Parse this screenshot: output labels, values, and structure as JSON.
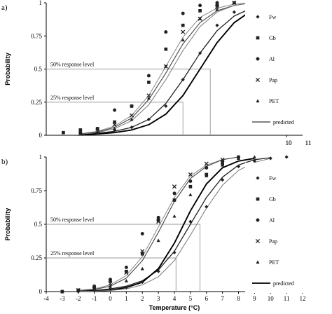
{
  "chart_data": [
    {
      "panel_label": "a)",
      "type": "line",
      "title": "",
      "xlabel": "",
      "ylabel": "Probability",
      "xlim": [
        -4,
        11
      ],
      "ylim": [
        0,
        1
      ],
      "x_tick_labels": [
        "10",
        "11"
      ],
      "y_ticks": [
        0,
        0.25,
        0.5,
        0.75,
        1
      ],
      "y_tick_labels": [
        "0",
        "0.25",
        "0.5",
        "0.75",
        "1"
      ],
      "legend_position": "right",
      "series": [
        {
          "name": "Fw",
          "marker": "diamond",
          "x": [
            -2,
            -1,
            0,
            1,
            2,
            3,
            4,
            5,
            6,
            7,
            8
          ],
          "y": [
            0.01,
            0.02,
            0.04,
            0.06,
            0.12,
            0.22,
            0.42,
            0.62,
            0.83,
            0.93,
            0.97
          ]
        },
        {
          "name": "Gb",
          "marker": "square",
          "x": [
            -3,
            -2,
            -1,
            0,
            1,
            2,
            3,
            4,
            5,
            6,
            7
          ],
          "y": [
            0.02,
            0.04,
            0.05,
            0.1,
            0.22,
            0.4,
            0.65,
            0.83,
            0.94,
            0.98,
            1
          ]
        },
        {
          "name": "Al",
          "marker": "circle",
          "x": [
            -2,
            -1,
            0,
            1,
            2,
            3,
            4,
            5,
            6
          ],
          "y": [
            0.02,
            0.05,
            0.19,
            0.22,
            0.45,
            0.78,
            0.92,
            0.98,
            1
          ]
        },
        {
          "name": "Pap",
          "marker": "x",
          "x": [
            -2,
            -1,
            0,
            1,
            2,
            3,
            4,
            5,
            6,
            7
          ],
          "y": [
            0.01,
            0.03,
            0.08,
            0.15,
            0.3,
            0.52,
            0.78,
            0.88,
            0.97,
            1
          ]
        },
        {
          "name": "PET",
          "marker": "triangle",
          "x": [
            -2,
            -1,
            0,
            1,
            2,
            3,
            4,
            5,
            6,
            7
          ],
          "y": [
            0.01,
            0.02,
            0.05,
            0.12,
            0.28,
            0.52,
            0.72,
            0.88,
            0.95,
            1
          ]
        },
        {
          "name": "predicted",
          "marker": "line"
        }
      ],
      "predicted_curves": [
        {
          "x": [
            -2,
            -1,
            0,
            1,
            2,
            3,
            4,
            5,
            6,
            7,
            8,
            9
          ],
          "y": [
            0.005,
            0.015,
            0.03,
            0.06,
            0.12,
            0.24,
            0.42,
            0.62,
            0.79,
            0.9,
            0.96,
            0.99
          ]
        },
        {
          "x": [
            -2,
            -1,
            0,
            1,
            2,
            3,
            4,
            5,
            6,
            7,
            8,
            9
          ],
          "y": [
            0.003,
            0.01,
            0.02,
            0.04,
            0.08,
            0.16,
            0.3,
            0.5,
            0.7,
            0.85,
            0.94,
            0.98
          ]
        },
        {
          "x": [
            -2,
            -1,
            0,
            1,
            2,
            3,
            4,
            5,
            6,
            7,
            8
          ],
          "y": [
            0.01,
            0.03,
            0.07,
            0.15,
            0.3,
            0.52,
            0.74,
            0.89,
            0.96,
            0.99,
            1
          ]
        },
        {
          "x": [
            -2,
            -1,
            0,
            1,
            2,
            3,
            4,
            5,
            6,
            7,
            8
          ],
          "y": [
            0.01,
            0.025,
            0.06,
            0.13,
            0.27,
            0.47,
            0.69,
            0.85,
            0.94,
            0.98,
            1
          ]
        },
        {
          "x": [
            -2,
            -1,
            0,
            1,
            2,
            3,
            4,
            5,
            6,
            7,
            8
          ],
          "y": [
            0.008,
            0.02,
            0.05,
            0.11,
            0.23,
            0.42,
            0.64,
            0.82,
            0.93,
            0.98,
            1
          ]
        }
      ],
      "annotations": [
        {
          "text": "50% response level",
          "y": 0.5,
          "x_end": 5.6
        },
        {
          "text": "25% response level",
          "y": 0.25,
          "x_end": 4.0
        }
      ]
    },
    {
      "panel_label": "b)",
      "type": "line",
      "title": "",
      "xlabel": "Temperature (°C)",
      "ylabel": "Probability",
      "xlim": [
        -4,
        12
      ],
      "ylim": [
        0,
        1
      ],
      "x_ticks": [
        -4,
        -3,
        -2,
        -1,
        0,
        1,
        2,
        3,
        4,
        5,
        6,
        7,
        8,
        9,
        10,
        11,
        12
      ],
      "x_tick_labels": [
        "-4",
        "-3",
        "-2",
        "-1",
        "0",
        "1",
        "2",
        "3",
        "4",
        "5",
        "6",
        "7",
        "8",
        "9",
        "10",
        "11",
        "12"
      ],
      "y_ticks": [
        0,
        0.25,
        0.5,
        0.75,
        1
      ],
      "y_tick_labels": [
        "0",
        "0.25",
        "0.5",
        "0.75",
        "1"
      ],
      "legend_position": "right",
      "series": [
        {
          "name": "Fw",
          "marker": "diamond",
          "x": [
            -3,
            -2,
            -1,
            0,
            1,
            2,
            3,
            4,
            5,
            6,
            7,
            8,
            9,
            10,
            11
          ],
          "y": [
            0,
            0,
            0.01,
            0.02,
            0.03,
            0.07,
            0.15,
            0.29,
            0.52,
            0.63,
            0.83,
            0.93,
            0.97,
            0.99,
            1
          ]
        },
        {
          "name": "Gb",
          "marker": "square",
          "x": [
            -3,
            -2,
            -1,
            0,
            1,
            2,
            3,
            4,
            5,
            6,
            7,
            8
          ],
          "y": [
            0,
            0.01,
            0.03,
            0.08,
            0.15,
            0.28,
            0.53,
            0.68,
            0.78,
            0.87,
            0.95,
            1
          ]
        },
        {
          "name": "Al",
          "marker": "circle",
          "x": [
            -2,
            -1,
            0,
            1,
            2,
            3,
            4,
            5,
            6,
            7
          ],
          "y": [
            0.01,
            0.04,
            0.09,
            0.18,
            0.43,
            0.55,
            0.73,
            0.82,
            0.92,
            0.97
          ]
        },
        {
          "name": "Pap",
          "marker": "x",
          "x": [
            -2,
            -1,
            0,
            1,
            2,
            3,
            4,
            5,
            6,
            7
          ],
          "y": [
            0.01,
            0.02,
            0.06,
            0.14,
            0.3,
            0.52,
            0.78,
            0.87,
            0.95,
            0.98
          ]
        },
        {
          "name": "PET",
          "marker": "triangle",
          "x": [
            -3,
            -2,
            -1,
            0,
            1,
            2,
            3,
            4,
            5,
            6,
            7,
            8,
            9
          ],
          "y": [
            0,
            0.01,
            0.02,
            0.04,
            0.08,
            0.17,
            0.38,
            0.56,
            0.72,
            0.86,
            0.94,
            0.99,
            1
          ]
        },
        {
          "name": "predicted",
          "marker": "line"
        }
      ],
      "predicted_curves": [
        {
          "x": [
            -2,
            -1,
            0,
            1,
            2,
            3,
            4,
            5,
            6,
            7,
            8,
            9,
            10
          ],
          "y": [
            0.003,
            0.008,
            0.02,
            0.04,
            0.08,
            0.16,
            0.3,
            0.5,
            0.7,
            0.85,
            0.94,
            0.98,
            0.995
          ]
        },
        {
          "x": [
            -2,
            -1,
            0,
            1,
            2,
            3,
            4,
            5,
            6,
            7,
            8,
            9
          ],
          "y": [
            0.002,
            0.005,
            0.01,
            0.03,
            0.07,
            0.17,
            0.36,
            0.6,
            0.8,
            0.92,
            0.97,
            0.99
          ]
        },
        {
          "x": [
            -2,
            -1,
            0,
            1,
            2,
            3,
            4,
            5,
            6,
            7,
            8
          ],
          "y": [
            0.01,
            0.02,
            0.05,
            0.12,
            0.26,
            0.48,
            0.7,
            0.86,
            0.94,
            0.98,
            1
          ]
        },
        {
          "x": [
            -2,
            -1,
            0,
            1,
            2,
            3,
            4,
            5,
            6,
            7,
            8
          ],
          "y": [
            0.005,
            0.015,
            0.04,
            0.1,
            0.23,
            0.44,
            0.67,
            0.84,
            0.93,
            0.98,
            1
          ]
        },
        {
          "x": [
            -2,
            -1,
            0,
            1,
            2,
            3,
            4,
            5,
            6,
            7,
            8,
            9,
            10
          ],
          "y": [
            0.001,
            0.003,
            0.008,
            0.02,
            0.05,
            0.11,
            0.23,
            0.42,
            0.62,
            0.79,
            0.9,
            0.96,
            0.99
          ]
        }
      ],
      "annotations": [
        {
          "text": "50% response level",
          "y": 0.5,
          "x_end": 5.6
        },
        {
          "text": "25% response level",
          "y": 0.25,
          "x_end": 4.1
        }
      ]
    }
  ]
}
